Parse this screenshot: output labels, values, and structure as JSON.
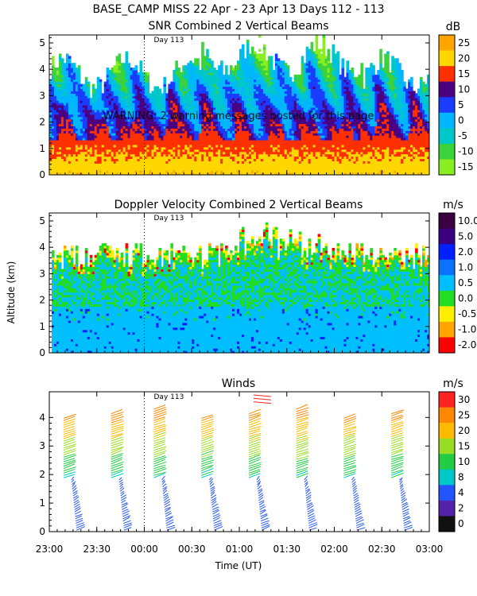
{
  "header": "BASE_CAMP MISS  22 Apr - 23 Apr 13 Days 112 - 113",
  "warning": "WARNING: 2 warning messages posted for this page",
  "shared": {
    "xlabel": "Time (UT)",
    "ylabel": "Altitude (km)",
    "x_ticks": [
      "23:00",
      "23:30",
      "00:00",
      "00:30",
      "01:00",
      "01:30",
      "02:00",
      "02:30",
      "03:00"
    ],
    "x_range_hours": [
      23,
      27
    ],
    "day_marker": {
      "label": "Day 113",
      "x_hours": 24
    }
  },
  "chart_data": [
    {
      "type": "heatmap",
      "title": "SNR Combined 2 Vertical Beams",
      "units": "dB",
      "ylim": [
        0,
        5.3
      ],
      "y_ticks": [
        "0",
        "1",
        "2",
        "3",
        "4",
        "5"
      ],
      "colorbar": {
        "labels": [
          "25",
          "20",
          "15",
          "10",
          "5",
          "0",
          "-5",
          "-10",
          "-15"
        ],
        "colors": [
          "#ffa500",
          "#ffd700",
          "#ff3000",
          "#4b0082",
          "#1a3cff",
          "#00b7ff",
          "#00c8c8",
          "#3cd23c",
          "#88ee22"
        ]
      }
    },
    {
      "type": "heatmap",
      "title": "Doppler Velocity Combined 2 Vertical Beams",
      "units": "m/s",
      "ylim": [
        0,
        5.3
      ],
      "y_ticks": [
        "0",
        "1",
        "2",
        "3",
        "4",
        "5"
      ],
      "colorbar": {
        "labels": [
          "10.0",
          "5.0",
          "2.0",
          "1.0",
          "0.5",
          "0.0",
          "-0.5",
          "-1.0",
          "-2.0"
        ],
        "colors": [
          "#3a0040",
          "#3a0080",
          "#0020ff",
          "#0a72ff",
          "#00bfff",
          "#22dd22",
          "#ffee00",
          "#ffa500",
          "#ff0000"
        ]
      }
    },
    {
      "type": "scatter",
      "title": "Winds",
      "units": "m/s",
      "ylim": [
        0,
        4.9
      ],
      "y_ticks": [
        "0",
        "1",
        "2",
        "3",
        "4"
      ],
      "colorbar": {
        "labels": [
          "30",
          "25",
          "20",
          "15",
          "10",
          "8",
          "4",
          "2",
          "0"
        ],
        "colors": [
          "#ff2222",
          "#ff8800",
          "#ffbb00",
          "#99dd22",
          "#22cc44",
          "#00c8c8",
          "#2255ff",
          "#5522aa",
          "#111111"
        ]
      },
      "profile_times_hours": [
        23.25,
        23.75,
        24.2,
        24.7,
        25.2,
        25.7,
        26.2,
        26.7
      ]
    }
  ]
}
